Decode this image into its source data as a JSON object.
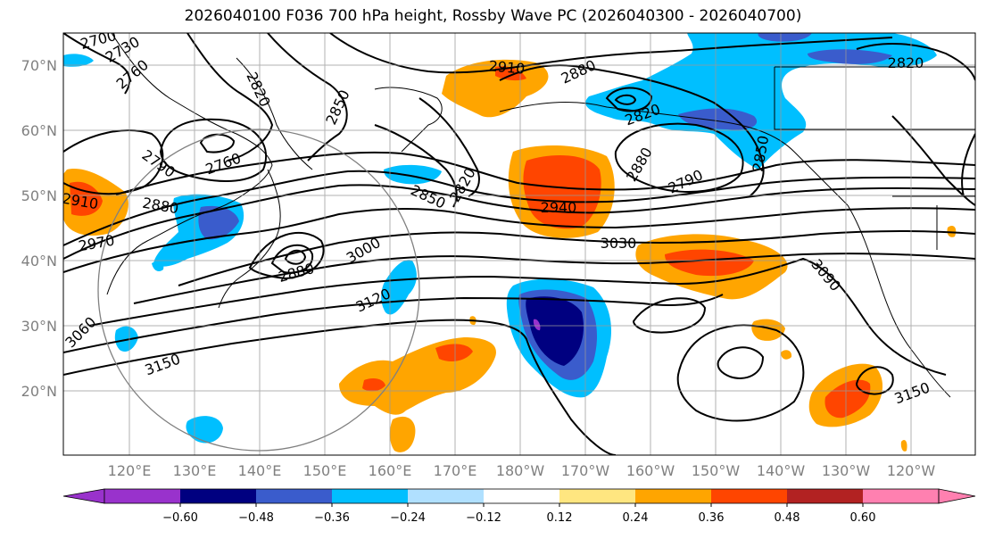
{
  "title": "2026040100 F036 700 hPa height, Rossby Wave PC (2026040300 - 2026040700)",
  "lat_labels": [
    "70°N",
    "60°N",
    "50°N",
    "40°N",
    "30°N",
    "20°N"
  ],
  "lon_labels": [
    "120°E",
    "130°E",
    "140°E",
    "150°E",
    "160°E",
    "170°E",
    "180°W",
    "170°W",
    "160°W",
    "150°W",
    "140°W",
    "130°W",
    "120°W"
  ],
  "contour_labels": [
    "2730",
    "2760",
    "2700",
    "2820",
    "2850",
    "2790",
    "2760",
    "2910",
    "2880",
    "2820",
    "2880",
    "2790",
    "2850",
    "2850",
    "2820",
    "2820",
    "2910",
    "2880",
    "2970",
    "2940",
    "3030",
    "3000",
    "2880",
    "3060",
    "3120",
    "3150",
    "3090",
    "3150"
  ],
  "colorbar": {
    "ticks": [
      "−0.60",
      "−0.48",
      "−0.36",
      "−0.24",
      "−0.12",
      "0.12",
      "0.24",
      "0.36",
      "0.48",
      "0.60"
    ],
    "colors": [
      "#9932cc",
      "#000080",
      "#3a5ccc",
      "#00bfff",
      "#b0e0ff",
      "#ffffff",
      "#ffe680",
      "#ffa500",
      "#ff4500",
      "#b22222",
      "#ff80b0"
    ]
  },
  "colors": {
    "contour": "#000000",
    "grid": "#999999",
    "circle": "#808080",
    "axis_labels": "#808080"
  }
}
